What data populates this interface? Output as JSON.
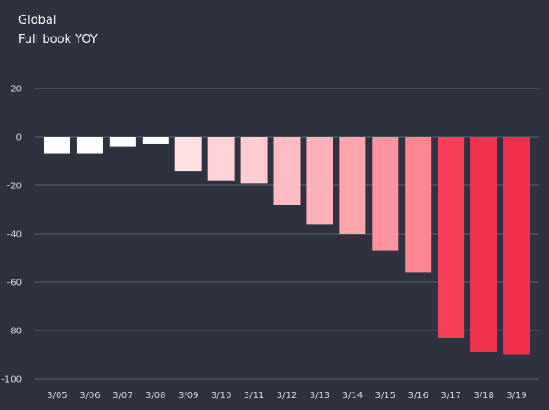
{
  "chart_data": {
    "type": "bar",
    "title": "Global",
    "subtitle": "Full book YOY",
    "xlabel": "",
    "ylabel": "",
    "ylim": [
      -100,
      20
    ],
    "yticks": [
      20,
      0,
      -20,
      -40,
      -60,
      -80,
      -100
    ],
    "grid": true,
    "categories": [
      "3/05",
      "3/06",
      "3/07",
      "3/08",
      "3/09",
      "3/10",
      "3/11",
      "3/12",
      "3/13",
      "3/14",
      "3/15",
      "3/16",
      "3/17",
      "3/18",
      "3/19"
    ],
    "values": [
      -7,
      -7,
      -4,
      -3,
      -14,
      -18,
      -19,
      -28,
      -36,
      -40,
      -47,
      -56,
      -83,
      -89,
      -90
    ],
    "colors": [
      "#ffffff",
      "#ffffff",
      "#ffffff",
      "#ffffff",
      "#ffe1e4",
      "#ffd2d7",
      "#ffccd2",
      "#ffbdc3",
      "#ffb0b8",
      "#ffa5ae",
      "#ff939f",
      "#ff8591",
      "#f7415a",
      "#f2334f",
      "#f02f4c"
    ]
  }
}
